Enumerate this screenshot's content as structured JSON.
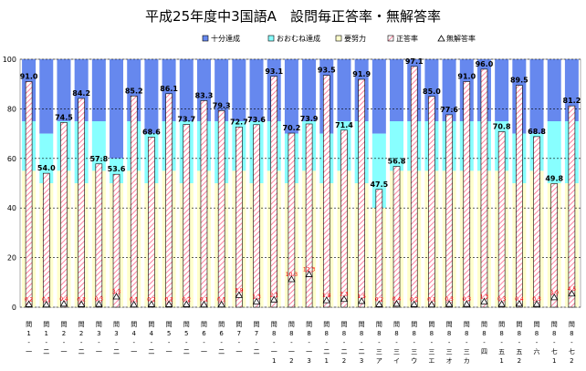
{
  "chart_data": {
    "type": "bar",
    "title": "平成25年度中3国語A　設問毎正答率・無解答率",
    "ylim": [
      0,
      100
    ],
    "yticks": [
      0,
      20,
      40,
      60,
      80,
      100
    ],
    "legend": [
      {
        "name": "十分達成",
        "color": "#6688ee"
      },
      {
        "name": "おおむね達成",
        "color": "#88ffff"
      },
      {
        "name": "要努力",
        "color": "#ffffcc"
      },
      {
        "name": "正答率",
        "color": "#ff99aa"
      },
      {
        "name": "無解答率",
        "color": "#ffffff"
      }
    ],
    "categories": [
      [
        "問",
        "1",
        "‐",
        "一"
      ],
      [
        "問",
        "1",
        "‐",
        "二"
      ],
      [
        "問",
        "2",
        "‐",
        "一"
      ],
      [
        "問",
        "2",
        "‐",
        "二"
      ],
      [
        "問",
        "3",
        "‐",
        "一"
      ],
      [
        "問",
        "3",
        "‐",
        "二"
      ],
      [
        "問",
        "4",
        "‐",
        "一"
      ],
      [
        "問",
        "4",
        "‐",
        "二"
      ],
      [
        "問",
        "5",
        "‐",
        "一"
      ],
      [
        "問",
        "5",
        "‐",
        "二"
      ],
      [
        "問",
        "6",
        "‐",
        "一"
      ],
      [
        "問",
        "6",
        "‐",
        "二"
      ],
      [
        "問",
        "7",
        "‐",
        "一"
      ],
      [
        "問",
        "7",
        "‐",
        "二"
      ],
      [
        "問",
        "8",
        "‐",
        "一",
        "1"
      ],
      [
        "問",
        "8",
        "‐",
        "一",
        "2"
      ],
      [
        "問",
        "8",
        "‐",
        "一",
        "3"
      ],
      [
        "問",
        "8",
        "‐",
        "二",
        "1"
      ],
      [
        "問",
        "8",
        "‐",
        "二",
        "2"
      ],
      [
        "問",
        "8",
        "‐",
        "二",
        "3"
      ],
      [
        "問",
        "8",
        "‐",
        "三",
        "ア"
      ],
      [
        "問",
        "8",
        "‐",
        "三",
        "イ"
      ],
      [
        "問",
        "8",
        "‐",
        "三",
        "ウ"
      ],
      [
        "問",
        "8",
        "‐",
        "三",
        "エ"
      ],
      [
        "問",
        "8",
        "‐",
        "三",
        "オ"
      ],
      [
        "問",
        "8",
        "‐",
        "三",
        "カ"
      ],
      [
        "問",
        "8",
        "‐",
        "四"
      ],
      [
        "問",
        "8",
        "‐",
        "五",
        "1"
      ],
      [
        "問",
        "8",
        "‐",
        "五",
        "2"
      ],
      [
        "問",
        "8",
        "‐",
        "六"
      ],
      [
        "問",
        "8",
        "‐",
        "七",
        "1"
      ],
      [
        "問",
        "8",
        "‐",
        "七",
        "2"
      ]
    ],
    "band_upper": [
      55,
      50,
      55,
      50,
      55,
      50,
      55,
      50,
      55,
      50,
      55,
      50,
      55,
      50,
      55,
      50,
      55,
      50,
      55,
      50,
      40,
      55,
      55,
      55,
      55,
      55,
      55,
      55,
      50,
      55,
      50,
      50
    ],
    "band_middle": [
      75,
      70,
      75,
      75,
      75,
      60,
      75,
      70,
      75,
      75,
      75,
      75,
      75,
      75,
      75,
      70,
      75,
      70,
      75,
      75,
      70,
      75,
      75,
      75,
      75,
      75,
      75,
      75,
      70,
      70,
      75,
      75
    ],
    "series": [
      {
        "name": "正答率",
        "values": [
          91.0,
          54.0,
          74.5,
          84.2,
          57.8,
          53.6,
          85.2,
          68.6,
          86.1,
          73.7,
          83.3,
          79.3,
          72.7,
          73.6,
          93.1,
          70.2,
          73.9,
          93.5,
          71.4,
          91.9,
          47.5,
          56.8,
          97.1,
          85.0,
          77.6,
          91.0,
          96.0,
          70.8,
          89.5,
          68.8,
          49.8,
          81.2
        ]
      },
      {
        "name": "無解答率",
        "values": [
          0.2,
          0.1,
          0.4,
          0.2,
          0.3,
          3.3,
          0.1,
          0.2,
          0.2,
          0.2,
          0.1,
          0.1,
          3.9,
          1.3,
          2.1,
          10.3,
          12.3,
          1.8,
          2.3,
          1.5,
          0.2,
          0.4,
          0.2,
          0.1,
          0.3,
          0.3,
          1.3,
          0.3,
          0.4,
          0.3,
          3.0,
          4.5
        ]
      }
    ],
    "grid": true,
    "legend_position": "top"
  }
}
